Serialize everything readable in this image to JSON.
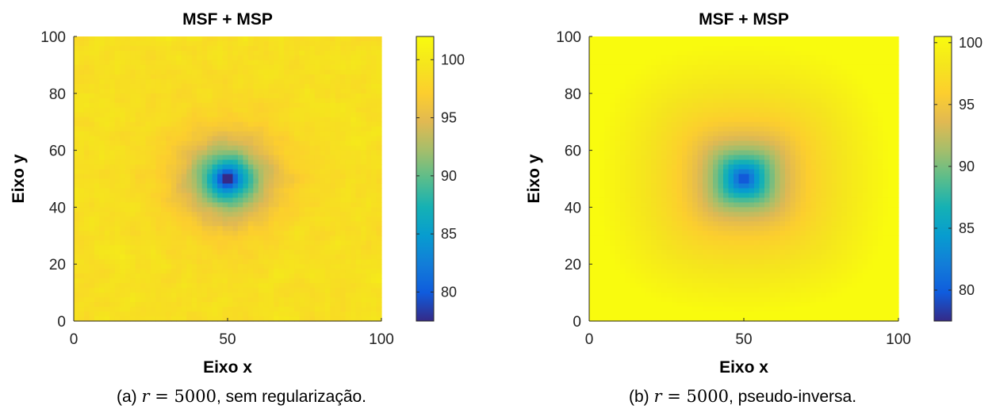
{
  "chart_data": [
    {
      "type": "heatmap",
      "title": "MSF + MSP",
      "xlabel": "Eixo x",
      "ylabel": "Eixo y",
      "xlim": [
        0,
        100
      ],
      "ylim": [
        0,
        100
      ],
      "xticks": [
        0,
        50,
        100
      ],
      "yticks": [
        0,
        20,
        40,
        60,
        80,
        100
      ],
      "colorbar": {
        "range": [
          77.5,
          102
        ],
        "ticks": [
          80,
          85,
          90,
          95,
          100
        ],
        "colormap": "parula"
      },
      "field": {
        "center": [
          50,
          50
        ],
        "min_value": 78,
        "background_value": 99,
        "noisy": true,
        "falloff": "isotropic"
      },
      "caption": {
        "prefix": "(a) ",
        "math_var": "r",
        "math_rest": " = 5000",
        "suffix": ", sem regularização."
      }
    },
    {
      "type": "heatmap",
      "title": "MSF + MSP",
      "xlabel": "Eixo x",
      "ylabel": "Eixo y",
      "xlim": [
        0,
        100
      ],
      "ylim": [
        0,
        100
      ],
      "xticks": [
        0,
        50,
        100
      ],
      "yticks": [
        0,
        20,
        40,
        60,
        80,
        100
      ],
      "colorbar": {
        "range": [
          77.5,
          100.5
        ],
        "ticks": [
          80,
          85,
          90,
          95,
          100
        ],
        "colormap": "parula"
      },
      "field": {
        "center": [
          50,
          50
        ],
        "min_value": 78,
        "background_value": 100.5,
        "noisy": false,
        "falloff": "superellipse"
      },
      "caption": {
        "prefix": "(b) ",
        "math_var": "r",
        "math_rest": " = 5000",
        "suffix": ", pseudo-inversa."
      }
    }
  ]
}
